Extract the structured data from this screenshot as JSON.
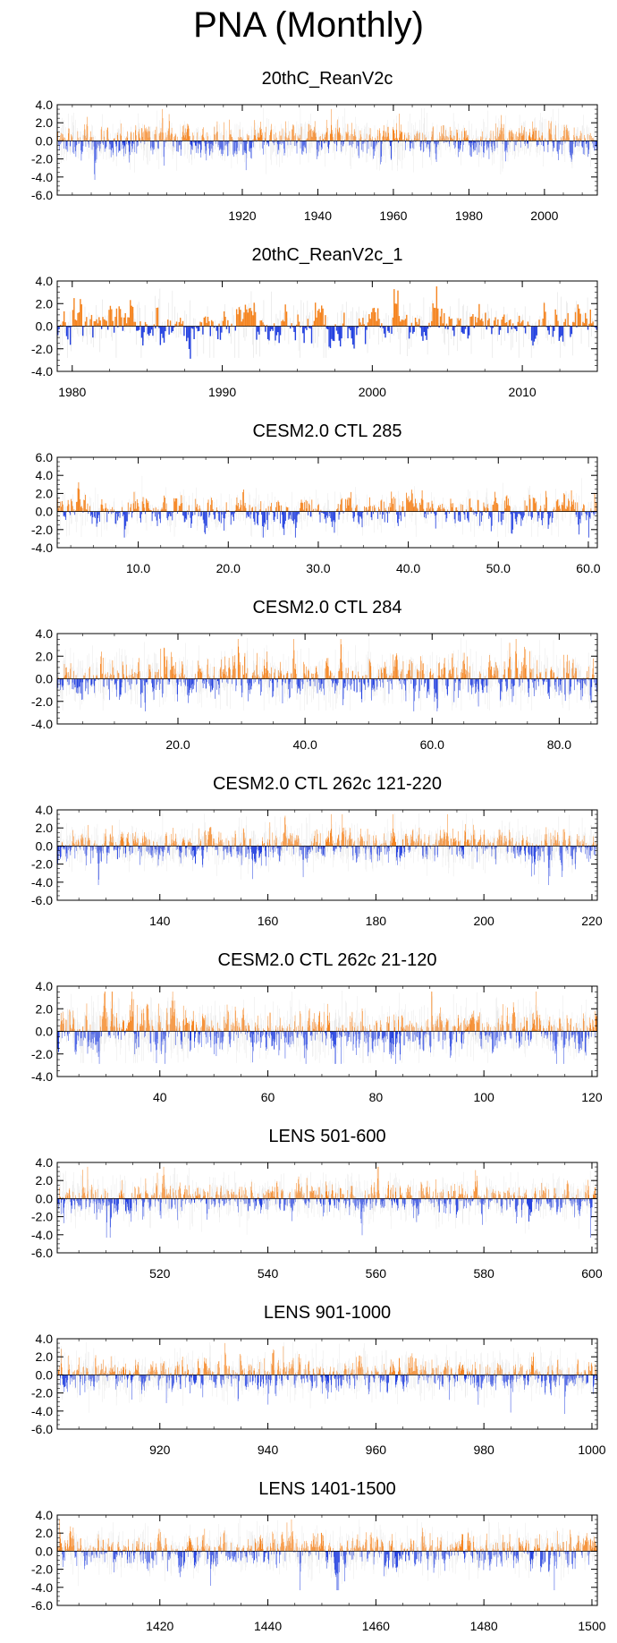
{
  "figure_title": "PNA (Monthly)",
  "colors": {
    "positive": "#f5841f",
    "negative": "#2341e0",
    "gray_bars": "#bdbdbd",
    "axis": "#000000"
  },
  "chart_data": [
    {
      "type": "bar",
      "title": "20thC_ReanV2c",
      "x_start": 1871,
      "x_end": 2014,
      "x_ticks": [
        1920,
        1940,
        1960,
        1980,
        2000
      ],
      "x_tick_labels": [
        "1920",
        "1940",
        "1960",
        "1980",
        "2000"
      ],
      "ylim": [
        -6,
        4
      ],
      "y_ticks": [
        4,
        2,
        0,
        -2,
        -4,
        -6
      ],
      "y_tick_labels": [
        "4.0",
        "2.0",
        "0.0",
        "-2.0",
        "-4.0",
        "-6.0"
      ],
      "seed": 11
    },
    {
      "type": "bar",
      "title": "20thC_ReanV2c_1",
      "x_start": 1979,
      "x_end": 2015,
      "x_ticks": [
        1980,
        1990,
        2000,
        2010
      ],
      "x_tick_labels": [
        "1980",
        "1990",
        "2000",
        "2010"
      ],
      "ylim": [
        -4,
        4
      ],
      "y_ticks": [
        4,
        2,
        0,
        -2,
        -4
      ],
      "y_tick_labels": [
        "4.0",
        "2.0",
        "0.0",
        "-2.0",
        "-4.0"
      ],
      "seed": 23
    },
    {
      "type": "bar",
      "title": "CESM2.0 CTL 285",
      "x_start": 1,
      "x_end": 61,
      "x_ticks": [
        10,
        20,
        30,
        40,
        50,
        60
      ],
      "x_tick_labels": [
        "10.0",
        "20.0",
        "30.0",
        "40.0",
        "50.0",
        "60.0"
      ],
      "ylim": [
        -4,
        6
      ],
      "y_ticks": [
        6,
        4,
        2,
        0,
        -2,
        -4
      ],
      "y_tick_labels": [
        "6.0",
        "4.0",
        "2.0",
        "0.0",
        "-2.0",
        "-4.0"
      ],
      "seed": 37
    },
    {
      "type": "bar",
      "title": "CESM2.0 CTL 284",
      "x_start": 1,
      "x_end": 86,
      "x_ticks": [
        20,
        40,
        60,
        80
      ],
      "x_tick_labels": [
        "20.0",
        "40.0",
        "60.0",
        "80.0"
      ],
      "ylim": [
        -4,
        4
      ],
      "y_ticks": [
        4,
        2,
        0,
        -2,
        -4
      ],
      "y_tick_labels": [
        "4.0",
        "2.0",
        "0.0",
        "-2.0",
        "-4.0"
      ],
      "seed": 41
    },
    {
      "type": "bar",
      "title": "CESM2.0 CTL 262c 121-220",
      "x_start": 121,
      "x_end": 221,
      "x_ticks": [
        140,
        160,
        180,
        200,
        220
      ],
      "x_tick_labels": [
        "140",
        "160",
        "180",
        "200",
        "220"
      ],
      "ylim": [
        -6,
        4
      ],
      "y_ticks": [
        4,
        2,
        0,
        -2,
        -4,
        -6
      ],
      "y_tick_labels": [
        "4.0",
        "2.0",
        "0.0",
        "-2.0",
        "-4.0",
        "-6.0"
      ],
      "seed": 53
    },
    {
      "type": "bar",
      "title": "CESM2.0 CTL 262c 21-120",
      "x_start": 21,
      "x_end": 121,
      "x_ticks": [
        40,
        60,
        80,
        100,
        120
      ],
      "x_tick_labels": [
        "40",
        "60",
        "80",
        "100",
        "120"
      ],
      "ylim": [
        -4,
        4
      ],
      "y_ticks": [
        4,
        2,
        0,
        -2,
        -4
      ],
      "y_tick_labels": [
        "4.0",
        "2.0",
        "0.0",
        "-2.0",
        "-4.0"
      ],
      "seed": 67
    },
    {
      "type": "bar",
      "title": "LENS 501-600",
      "x_start": 501,
      "x_end": 601,
      "x_ticks": [
        520,
        540,
        560,
        580,
        600
      ],
      "x_tick_labels": [
        "520",
        "540",
        "560",
        "580",
        "600"
      ],
      "ylim": [
        -6,
        4
      ],
      "y_ticks": [
        4,
        2,
        0,
        -2,
        -4,
        -6
      ],
      "y_tick_labels": [
        "4.0",
        "2.0",
        "0.0",
        "-2.0",
        "-4.0",
        "-6.0"
      ],
      "seed": 71
    },
    {
      "type": "bar",
      "title": "LENS 901-1000",
      "x_start": 901,
      "x_end": 1001,
      "x_ticks": [
        920,
        940,
        960,
        980,
        1000
      ],
      "x_tick_labels": [
        "920",
        "940",
        "960",
        "980",
        "1000"
      ],
      "ylim": [
        -6,
        4
      ],
      "y_ticks": [
        4,
        2,
        0,
        -2,
        -4,
        -6
      ],
      "y_tick_labels": [
        "4.0",
        "2.0",
        "0.0",
        "-2.0",
        "-4.0",
        "-6.0"
      ],
      "seed": 83
    },
    {
      "type": "bar",
      "title": "LENS 1401-1500",
      "x_start": 1401,
      "x_end": 1501,
      "x_ticks": [
        1420,
        1440,
        1460,
        1480,
        1500
      ],
      "x_tick_labels": [
        "1420",
        "1440",
        "1460",
        "1480",
        "1500"
      ],
      "ylim": [
        -6,
        4
      ],
      "y_ticks": [
        4,
        2,
        0,
        -2,
        -4,
        -6
      ],
      "y_tick_labels": [
        "4.0",
        "2.0",
        "0.0",
        "-2.0",
        "-4.0",
        "-6.0"
      ],
      "seed": 97
    }
  ]
}
